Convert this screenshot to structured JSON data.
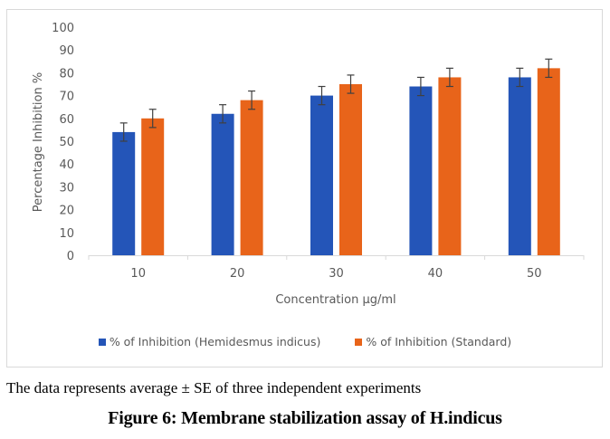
{
  "chart_data": {
    "type": "bar",
    "title": "",
    "xlabel": "Concentration µg/ml",
    "ylabel": "Percentage Inhibition %",
    "ylim": [
      0,
      100
    ],
    "yticks": [
      0,
      10,
      20,
      30,
      40,
      50,
      60,
      70,
      80,
      90,
      100
    ],
    "grid": false,
    "categories": [
      "10",
      "20",
      "30",
      "40",
      "50"
    ],
    "series": [
      {
        "name": "% of Inhibition (Hemidesmus indicus)",
        "color": "#2455b8",
        "values": [
          54,
          62,
          70,
          74,
          78
        ],
        "errors": [
          4,
          4,
          4,
          4,
          4
        ]
      },
      {
        "name": "% of Inhibition (Standard)",
        "color": "#e8641a",
        "values": [
          60,
          68,
          75,
          78,
          82
        ],
        "errors": [
          4,
          4,
          4,
          4,
          4
        ]
      }
    ],
    "legend_position": "bottom"
  },
  "note": "The data represents average ± SE of three independent experiments",
  "caption": "Figure 6: Membrane stabilization assay of H.indicus"
}
